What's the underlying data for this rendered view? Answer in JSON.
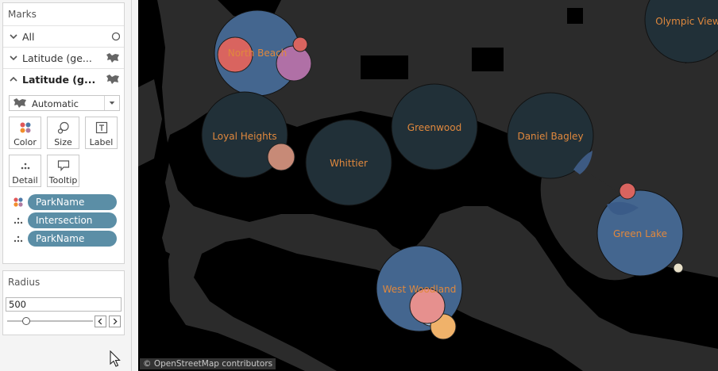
{
  "marks": {
    "title": "Marks",
    "layers": [
      {
        "label": "All",
        "expanded": false
      },
      {
        "label": "Latitude (ge...",
        "expanded": false
      },
      {
        "label": "Latitude (g...",
        "expanded": true
      }
    ],
    "mark_type": "Automatic",
    "buttons": {
      "color": "Color",
      "size": "Size",
      "label": "Label",
      "detail": "Detail",
      "tooltip": "Tooltip"
    },
    "pills": [
      {
        "field": "ParkName",
        "role": "color"
      },
      {
        "field": "Intersection",
        "role": "detail"
      },
      {
        "field": "ParkName",
        "role": "detail"
      }
    ]
  },
  "radius": {
    "title": "Radius",
    "value": "500"
  },
  "map": {
    "attribution": "© OpenStreetMap contributors",
    "neighborhoods": [
      "North Beach",
      "Olympic View",
      "Loyal Heights",
      "Greenwood",
      "Daniel Bagley",
      "Whittier",
      "Green Lake",
      "West Woodland"
    ]
  },
  "colors": {
    "pill": "#5b8ea6",
    "circle_dark": "#213038",
    "circle_blue": "#44668f",
    "label_orange": "#e0883d",
    "land": "#2b2b2b",
    "water": "#000000"
  }
}
